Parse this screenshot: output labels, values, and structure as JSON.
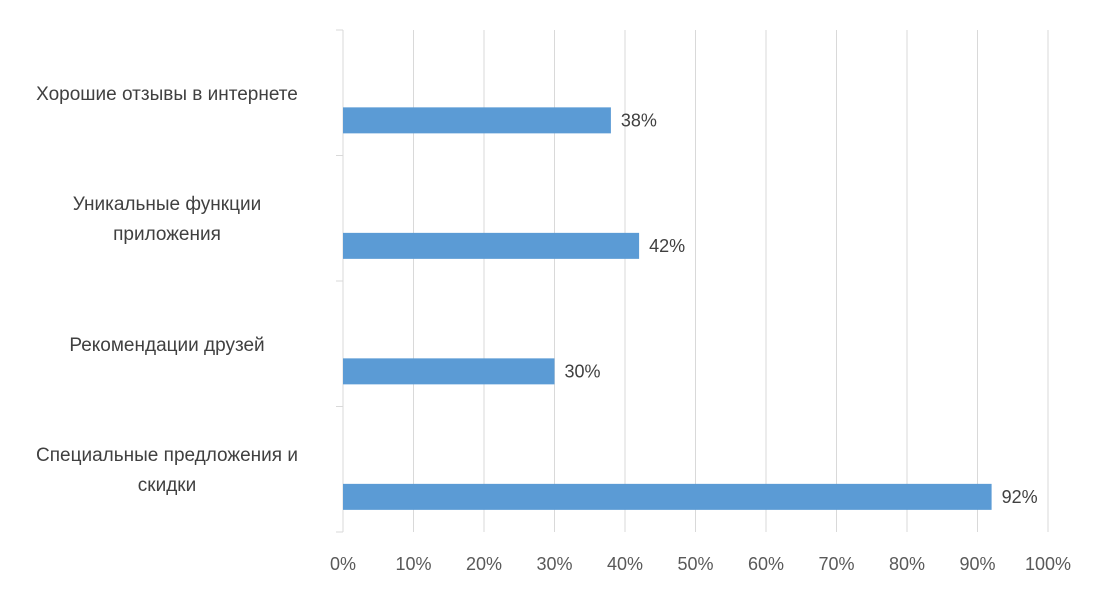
{
  "chart_data": {
    "type": "bar",
    "orientation": "horizontal",
    "categories": [
      "Хорошие отзывы в интернете",
      "Уникальные функции приложения",
      "Рекомендации друзей",
      "Специальные предложения и скидки"
    ],
    "category_lines": [
      [
        "Хорошие отзывы в интернете"
      ],
      [
        "Уникальные функции",
        "приложения"
      ],
      [
        "Рекомендации друзей"
      ],
      [
        "Специальные предложения и",
        "скидки"
      ]
    ],
    "values": [
      38,
      42,
      30,
      92
    ],
    "data_labels": [
      "38%",
      "42%",
      "30%",
      "92%"
    ],
    "xlim": [
      0,
      100
    ],
    "x_ticks": [
      "0%",
      "10%",
      "20%",
      "30%",
      "40%",
      "50%",
      "60%",
      "70%",
      "80%",
      "90%",
      "100%"
    ],
    "title": "",
    "xlabel": "",
    "ylabel": "",
    "grid": "vertical",
    "legend": "none",
    "bar_color": "#5B9BD5",
    "gridline_color": "#D9D9D9"
  }
}
